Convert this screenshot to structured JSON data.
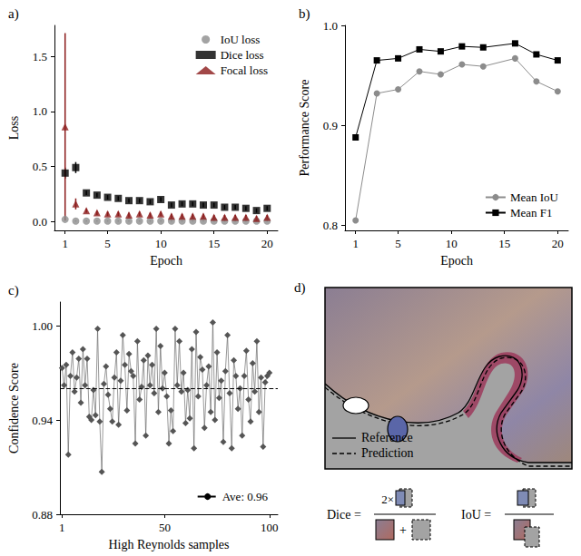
{
  "chart_data": [
    {
      "title": "a)",
      "type": "scatter",
      "x_label": "Epoch",
      "y_label": "Loss",
      "x": [
        1,
        2,
        3,
        4,
        5,
        6,
        7,
        8,
        9,
        10,
        11,
        12,
        13,
        14,
        15,
        16,
        17,
        18,
        19,
        20
      ],
      "series": [
        {
          "name": "IoU loss",
          "color": "#8c8c8c",
          "marker": "circle",
          "values": [
            0.02,
            0.005,
            0.005,
            0.005,
            0.005,
            0.005,
            0.005,
            0.005,
            0.005,
            0.005,
            0.005,
            0.005,
            0.005,
            0.005,
            0.005,
            0.005,
            0.005,
            0.005,
            0.005,
            0.005
          ],
          "errors": [
            0.01,
            0.005,
            0.005,
            0.005,
            0.005,
            0.005,
            0.005,
            0.005,
            0.005,
            0.005,
            0.005,
            0.005,
            0.005,
            0.005,
            0.005,
            0.005,
            0.005,
            0.005,
            0.005,
            0.005
          ]
        },
        {
          "name": "Dice loss",
          "color": "#000000",
          "marker": "square",
          "values": [
            0.44,
            0.49,
            0.26,
            0.24,
            0.22,
            0.21,
            0.19,
            0.19,
            0.18,
            0.2,
            0.15,
            0.16,
            0.16,
            0.15,
            0.15,
            0.13,
            0.13,
            0.12,
            0.1,
            0.12
          ],
          "errors": [
            0.05,
            0.05,
            0.02,
            0.02,
            0.02,
            0.02,
            0.02,
            0.02,
            0.02,
            0.02,
            0.02,
            0.02,
            0.02,
            0.02,
            0.02,
            0.02,
            0.02,
            0.02,
            0.02,
            0.02
          ]
        },
        {
          "name": "Focal loss",
          "color": "#8b1a1a",
          "marker": "triangle",
          "values": [
            0.86,
            0.16,
            0.1,
            0.08,
            0.07,
            0.07,
            0.06,
            0.07,
            0.06,
            0.07,
            0.05,
            0.05,
            0.05,
            0.05,
            0.04,
            0.04,
            0.04,
            0.04,
            0.03,
            0.04
          ],
          "errors": [
            0.85,
            0.05,
            0.02,
            0.02,
            0.02,
            0.02,
            0.02,
            0.02,
            0.02,
            0.02,
            0.02,
            0.02,
            0.02,
            0.02,
            0.02,
            0.02,
            0.02,
            0.02,
            0.02,
            0.02
          ]
        }
      ],
      "xlim": [
        0,
        21
      ],
      "xticks": [
        1,
        5,
        10,
        15,
        20
      ],
      "ylim": [
        -0.08,
        1.78
      ],
      "yticks": [
        {
          "value": 0,
          "label": "0.0"
        },
        {
          "value": 0.5,
          "label": "0.5"
        },
        {
          "value": 1,
          "label": "1.0"
        },
        {
          "value": 1.5,
          "label": "1.5"
        }
      ],
      "legend": "upper right",
      "grid": false
    },
    {
      "title": "b)",
      "type": "line",
      "x_label": "Epoch",
      "y_label": "Performance Score",
      "x": [
        1,
        3,
        5,
        7,
        9,
        11,
        13,
        16,
        18,
        20
      ],
      "series": [
        {
          "name": "Mean IoU",
          "color": "#8c8c8c",
          "marker": "circle",
          "values": [
            0.805,
            0.932,
            0.936,
            0.954,
            0.951,
            0.961,
            0.959,
            0.967,
            0.944,
            0.934
          ]
        },
        {
          "name": "Mean F1",
          "color": "#000000",
          "marker": "square",
          "values": [
            0.888,
            0.965,
            0.967,
            0.976,
            0.974,
            0.979,
            0.978,
            0.982,
            0.971,
            0.965
          ]
        }
      ],
      "xlim": [
        0,
        21
      ],
      "xticks": [
        1,
        5,
        10,
        15,
        20
      ],
      "ylim": [
        0.795,
        1.0
      ],
      "yticks": [
        {
          "value": 0.8,
          "label": "0.8"
        },
        {
          "value": 0.9,
          "label": "0.9"
        },
        {
          "value": 1.0,
          "label": "1.0"
        }
      ],
      "legend": "lower right",
      "grid": false
    },
    {
      "title": "c)",
      "type": "line",
      "x_label": "High Reynolds samples",
      "y_label": "Confidence Score",
      "x": [
        1,
        2,
        3,
        4,
        5,
        6,
        7,
        8,
        9,
        10,
        11,
        12,
        13,
        14,
        15,
        16,
        17,
        18,
        19,
        20,
        21,
        22,
        23,
        24,
        25,
        26,
        27,
        28,
        29,
        30,
        31,
        32,
        33,
        34,
        35,
        36,
        37,
        38,
        39,
        40,
        41,
        42,
        43,
        44,
        45,
        46,
        47,
        48,
        49,
        50,
        51,
        52,
        53,
        54,
        55,
        56,
        57,
        58,
        59,
        60,
        61,
        62,
        63,
        64,
        65,
        66,
        67,
        68,
        69,
        70,
        71,
        72,
        73,
        74,
        75,
        76,
        77,
        78,
        79,
        80,
        81,
        82,
        83,
        84,
        85,
        86,
        87,
        88,
        89,
        90,
        91,
        92,
        93,
        94,
        95,
        96,
        97,
        98,
        99,
        100
      ],
      "series": [
        {
          "color": "#555555",
          "marker": "diamond",
          "values": [
            0.973,
            0.962,
            0.975,
            0.918,
            0.968,
            0.983,
            0.958,
            0.967,
            0.979,
            0.951,
            0.985,
            0.962,
            0.979,
            0.942,
            0.94,
            0.959,
            0.943,
            0.998,
            0.939,
            0.907,
            0.963,
            0.974,
            0.956,
            0.947,
            0.939,
            0.967,
            0.983,
            0.937,
            0.965,
            0.994,
            0.975,
            0.946,
            0.982,
            0.971,
            0.968,
            0.925,
            0.99,
            0.953,
            0.961,
            0.978,
            0.93,
            0.981,
            0.962,
            0.975,
            0.957,
            0.998,
            0.945,
            0.987,
            0.96,
            0.97,
            0.955,
            0.925,
            0.946,
            0.933,
            0.998,
            0.962,
            0.99,
            0.958,
            0.97,
            0.938,
            0.959,
            0.941,
            0.985,
            0.922,
            0.996,
            0.955,
            0.98,
            0.972,
            0.935,
            0.962,
            0.974,
            0.945,
            1.002,
            0.94,
            0.983,
            0.954,
            0.965,
            0.926,
            0.971,
            0.994,
            0.957,
            0.922,
            0.978,
            0.968,
            0.947,
            0.96,
            0.93,
            0.968,
            0.984,
            0.953,
            0.939,
            0.976,
            0.958,
            0.99,
            0.945,
            0.967,
            0.923,
            0.964,
            0.968,
            0.97
          ]
        }
      ],
      "average": {
        "label": "Ave: 0.96",
        "value": 0.96,
        "color": "#000000",
        "line_style": "dashed"
      },
      "xlim": [
        0,
        104
      ],
      "xticks": [
        1,
        50,
        100
      ],
      "ylim": [
        0.88,
        1.015
      ],
      "yticks": [
        {
          "value": 0.88,
          "label": "0.88"
        },
        {
          "value": 0.94,
          "label": "0.94"
        },
        {
          "value": 1.0,
          "label": "1.00"
        }
      ],
      "legend": "lower right",
      "grid": false
    }
  ],
  "diagram": {
    "title": "d)",
    "legend": [
      {
        "label": "Reference",
        "line_style": "solid"
      },
      {
        "label": "Prediction",
        "line_style": "dashed"
      }
    ],
    "formulas": [
      {
        "label": "Dice =",
        "numerator": "2×",
        "join": "+"
      },
      {
        "label": "IoU ="
      }
    ]
  }
}
